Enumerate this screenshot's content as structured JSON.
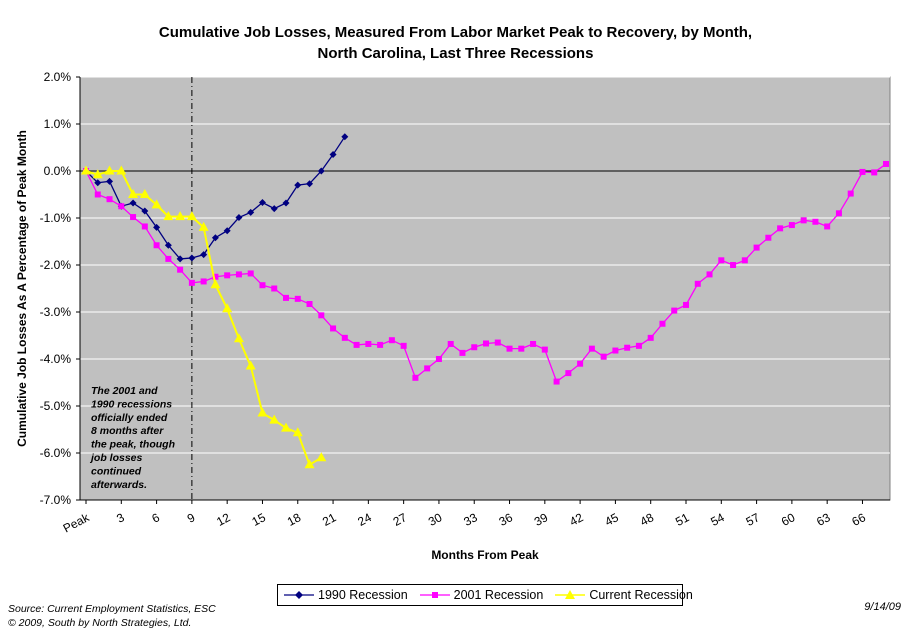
{
  "chart_data": {
    "type": "line",
    "title_line1": "Cumulative Job Losses, Measured From Labor Market Peak to Recovery, by Month,",
    "title_line2": "North Carolina, Last Three Recessions",
    "xlabel": "Months From Peak",
    "ylabel": "Cumulative Job Losses As A Percentage of Peak Month",
    "ylim": [
      -7,
      2
    ],
    "xlim": [
      0,
      68
    ],
    "y_ticks": [
      "2.0%",
      "1.0%",
      "0.0%",
      "-1.0%",
      "-2.0%",
      "-3.0%",
      "-4.0%",
      "-5.0%",
      "-6.0%",
      "-7.0%"
    ],
    "y_tick_values": [
      2,
      1,
      0,
      -1,
      -2,
      -3,
      -4,
      -5,
      -6,
      -7
    ],
    "x_ticks": [
      "Peak",
      "3",
      "6",
      "9",
      "12",
      "15",
      "18",
      "21",
      "24",
      "27",
      "30",
      "33",
      "36",
      "39",
      "42",
      "45",
      "48",
      "51",
      "54",
      "57",
      "60",
      "63",
      "66"
    ],
    "x_tick_values": [
      0,
      3,
      6,
      9,
      12,
      15,
      18,
      21,
      24,
      27,
      30,
      33,
      36,
      39,
      42,
      45,
      48,
      51,
      54,
      57,
      60,
      63,
      66
    ],
    "grid": "horizontal",
    "plot_background": "#c0c0c0",
    "reference_line": {
      "x": 9,
      "style": "dash-dot"
    },
    "annotation": "The 2001 and 1990 recessions officially ended 8 months after the peak, though job losses continued afterwards.",
    "legend_position": "bottom",
    "series": [
      {
        "name": "1990 Recession",
        "color": "#000080",
        "marker": "diamond",
        "values": [
          0,
          -0.25,
          -0.22,
          -0.75,
          -0.68,
          -0.85,
          -1.2,
          -1.58,
          -1.87,
          -1.85,
          -1.78,
          -1.42,
          -1.27,
          -0.99,
          -0.88,
          -0.67,
          -0.8,
          -0.68,
          -0.3,
          -0.27,
          0.0,
          0.35,
          0.73
        ]
      },
      {
        "name": "2001 Recession",
        "color": "#ff00ff",
        "marker": "square",
        "values": [
          0,
          -0.5,
          -0.6,
          -0.75,
          -0.98,
          -1.18,
          -1.58,
          -1.87,
          -2.1,
          -2.38,
          -2.35,
          -2.25,
          -2.22,
          -2.2,
          -2.18,
          -2.43,
          -2.5,
          -2.7,
          -2.72,
          -2.83,
          -3.07,
          -3.35,
          -3.55,
          -3.7,
          -3.68,
          -3.7,
          -3.6,
          -3.72,
          -4.4,
          -4.2,
          -4.0,
          -3.68,
          -3.87,
          -3.75,
          -3.67,
          -3.65,
          -3.78,
          -3.78,
          -3.68,
          -3.8,
          -4.48,
          -4.3,
          -4.1,
          -3.78,
          -3.95,
          -3.82,
          -3.76,
          -3.72,
          -3.55,
          -3.25,
          -2.97,
          -2.85,
          -2.4,
          -2.2,
          -1.9,
          -2.0,
          -1.9,
          -1.63,
          -1.42,
          -1.22,
          -1.15,
          -1.05,
          -1.08,
          -1.18,
          -0.9,
          -0.48,
          -0.02,
          -0.03,
          0.15
        ]
      },
      {
        "name": "Current Recession",
        "color": "#ffff00",
        "marker": "triangle",
        "values": [
          0,
          -0.08,
          0.0,
          0.0,
          -0.5,
          -0.5,
          -0.72,
          -0.97,
          -0.97,
          -0.97,
          -1.2,
          -2.42,
          -2.93,
          -3.57,
          -4.15,
          -5.15,
          -5.3,
          -5.47,
          -5.57,
          -6.25,
          -6.1
        ]
      }
    ]
  },
  "footer": {
    "source": "Source: Current Employment Statistics, ESC",
    "copyright": "© 2009, South by North Strategies, Ltd.",
    "date": "9/14/09"
  }
}
